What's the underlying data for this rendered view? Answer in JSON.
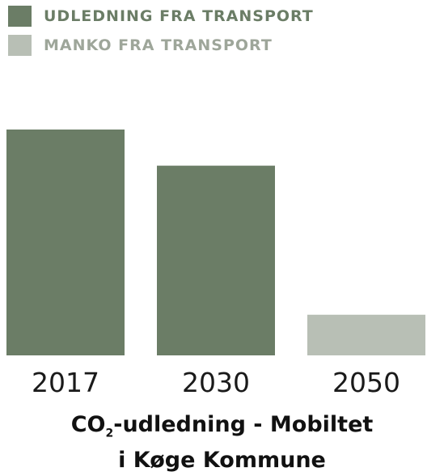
{
  "chart_data": {
    "type": "bar",
    "categories": [
      "2017",
      "2030",
      "2050"
    ],
    "series": [
      {
        "name": "UDLEDNING FRA TRANSPORT",
        "values": [
          100,
          84,
          0
        ],
        "color": "#6b7d66"
      },
      {
        "name": "MANKO FRA TRANSPORT",
        "values": [
          0,
          0,
          18
        ],
        "color": "#b8bfb5"
      }
    ],
    "legend": "top-left",
    "grid": false,
    "ylim": [
      0,
      100
    ],
    "title": {
      "line1_prefix": "CO",
      "line1_sub": "2",
      "line1_suffix": "-udledning - Mobiltet",
      "line2": "i Køge Kommune"
    }
  }
}
